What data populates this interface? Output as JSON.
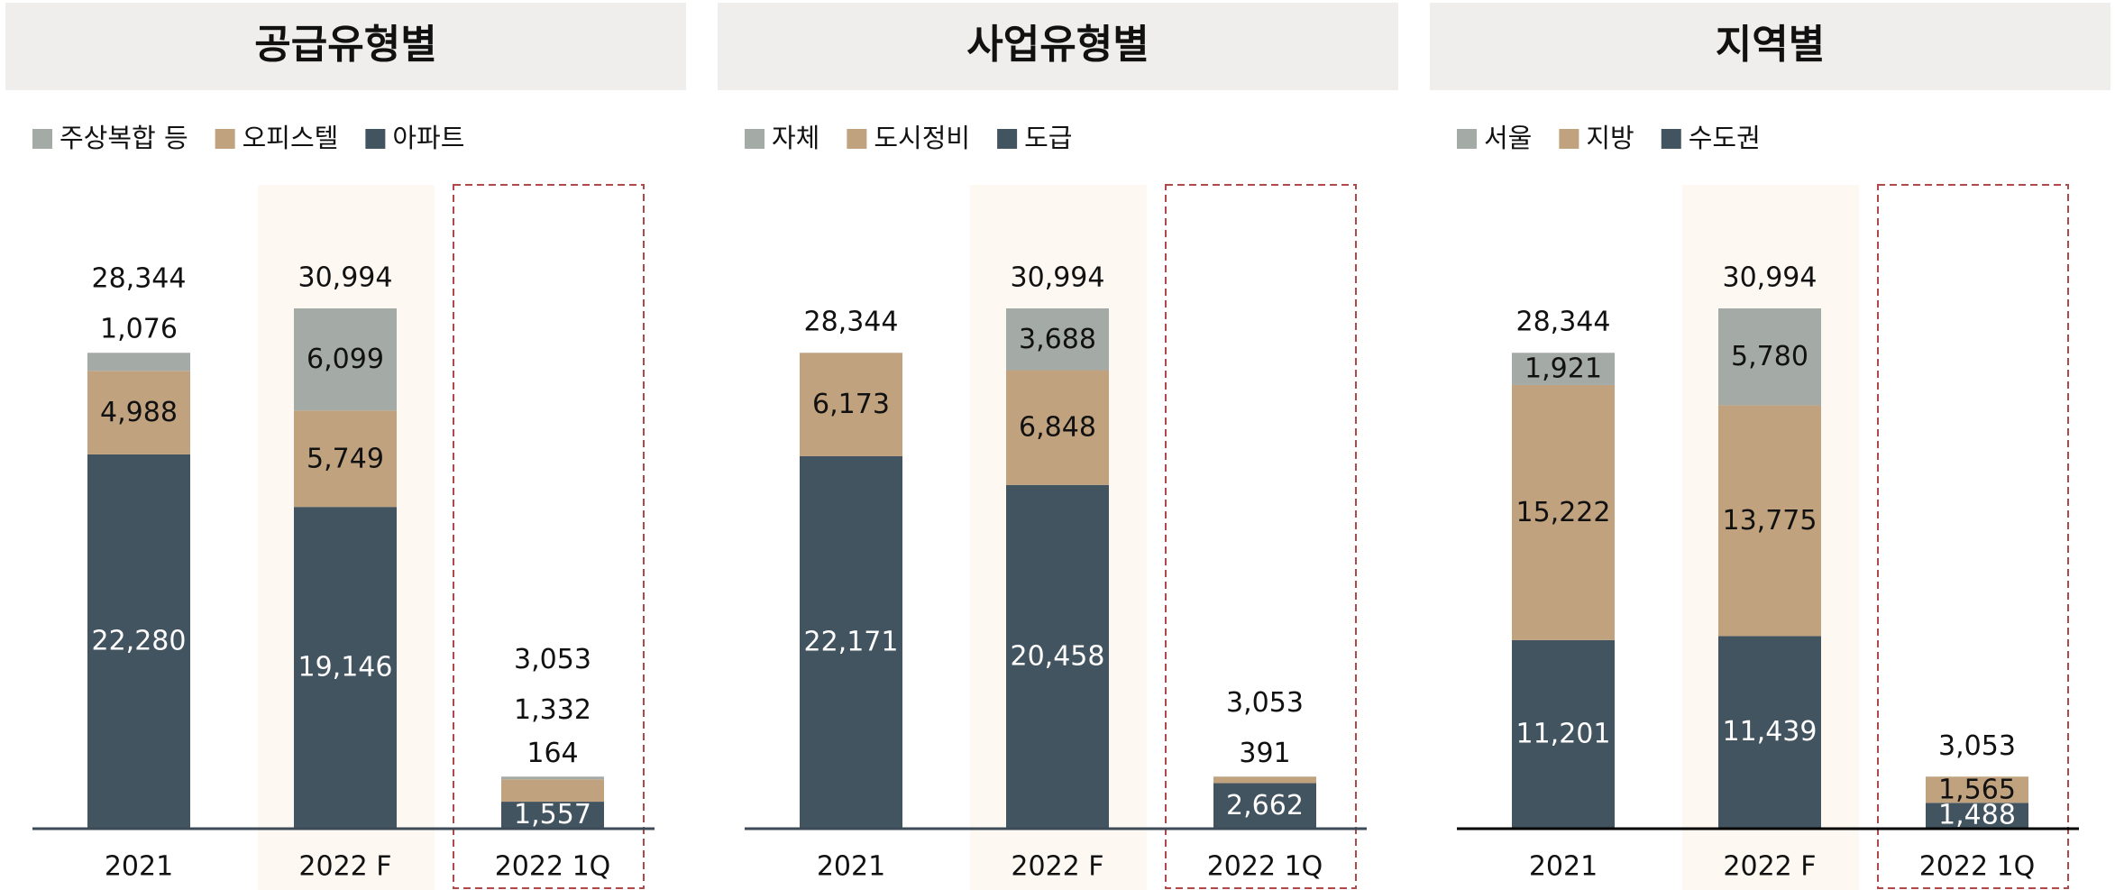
{
  "chart_data": [
    {
      "type": "bar",
      "stacked": true,
      "title": "공급유형별",
      "categories": [
        "2021",
        "2022 F",
        "2022 1Q"
      ],
      "series": [
        {
          "name": "아파트",
          "color": "#435461",
          "values": [
            22280,
            19146,
            1557
          ],
          "value_labels": [
            "22,280",
            "19,146",
            "1,557"
          ]
        },
        {
          "name": "오피스텔",
          "color": "#c0a27e",
          "values": [
            4988,
            5749,
            1332
          ],
          "value_labels": [
            "4,988",
            "5,749",
            "1,332"
          ]
        },
        {
          "name": "주상복합 등",
          "color": "#a4aaa6",
          "values": [
            1076,
            6099,
            164
          ],
          "value_labels": [
            "1,076",
            "6,099",
            "164"
          ]
        }
      ],
      "totals": [
        28344,
        30994,
        3053
      ],
      "total_labels": [
        "28,344",
        "30,994",
        "3,053"
      ]
    },
    {
      "type": "bar",
      "stacked": true,
      "title": "사업유형별",
      "categories": [
        "2021",
        "2022 F",
        "2022 1Q"
      ],
      "series": [
        {
          "name": "도급",
          "color": "#435461",
          "values": [
            22171,
            20458,
            2662
          ],
          "value_labels": [
            "22,171",
            "20,458",
            "2,662"
          ]
        },
        {
          "name": "도시정비",
          "color": "#c0a27e",
          "values": [
            6173,
            6848,
            391
          ],
          "value_labels": [
            "6,173",
            "6,848",
            "391"
          ]
        },
        {
          "name": "자체",
          "color": "#a4aaa6",
          "values": [
            null,
            3688,
            null
          ],
          "value_labels": [
            null,
            "3,688",
            null
          ]
        }
      ],
      "totals": [
        28344,
        30994,
        3053
      ],
      "total_labels": [
        "28,344",
        "30,994",
        "3,053"
      ]
    },
    {
      "type": "bar",
      "stacked": true,
      "title": "지역별",
      "categories": [
        "2021",
        "2022 F",
        "2022 1Q"
      ],
      "series": [
        {
          "name": "수도권",
          "color": "#435461",
          "values": [
            11201,
            11439,
            1488
          ],
          "value_labels": [
            "11,201",
            "11,439",
            "1,488"
          ]
        },
        {
          "name": "지방",
          "color": "#c0a27e",
          "values": [
            15222,
            13775,
            1565
          ],
          "value_labels": [
            "15,222",
            "13,775",
            "1,565"
          ]
        },
        {
          "name": "서울",
          "color": "#a4aaa6",
          "values": [
            1921,
            5780,
            null
          ],
          "value_labels": [
            "1,921",
            "5,780",
            null
          ]
        }
      ],
      "totals": [
        28344,
        30994,
        3053
      ],
      "total_labels": [
        "28,344",
        "30,994",
        "3,053"
      ]
    }
  ]
}
